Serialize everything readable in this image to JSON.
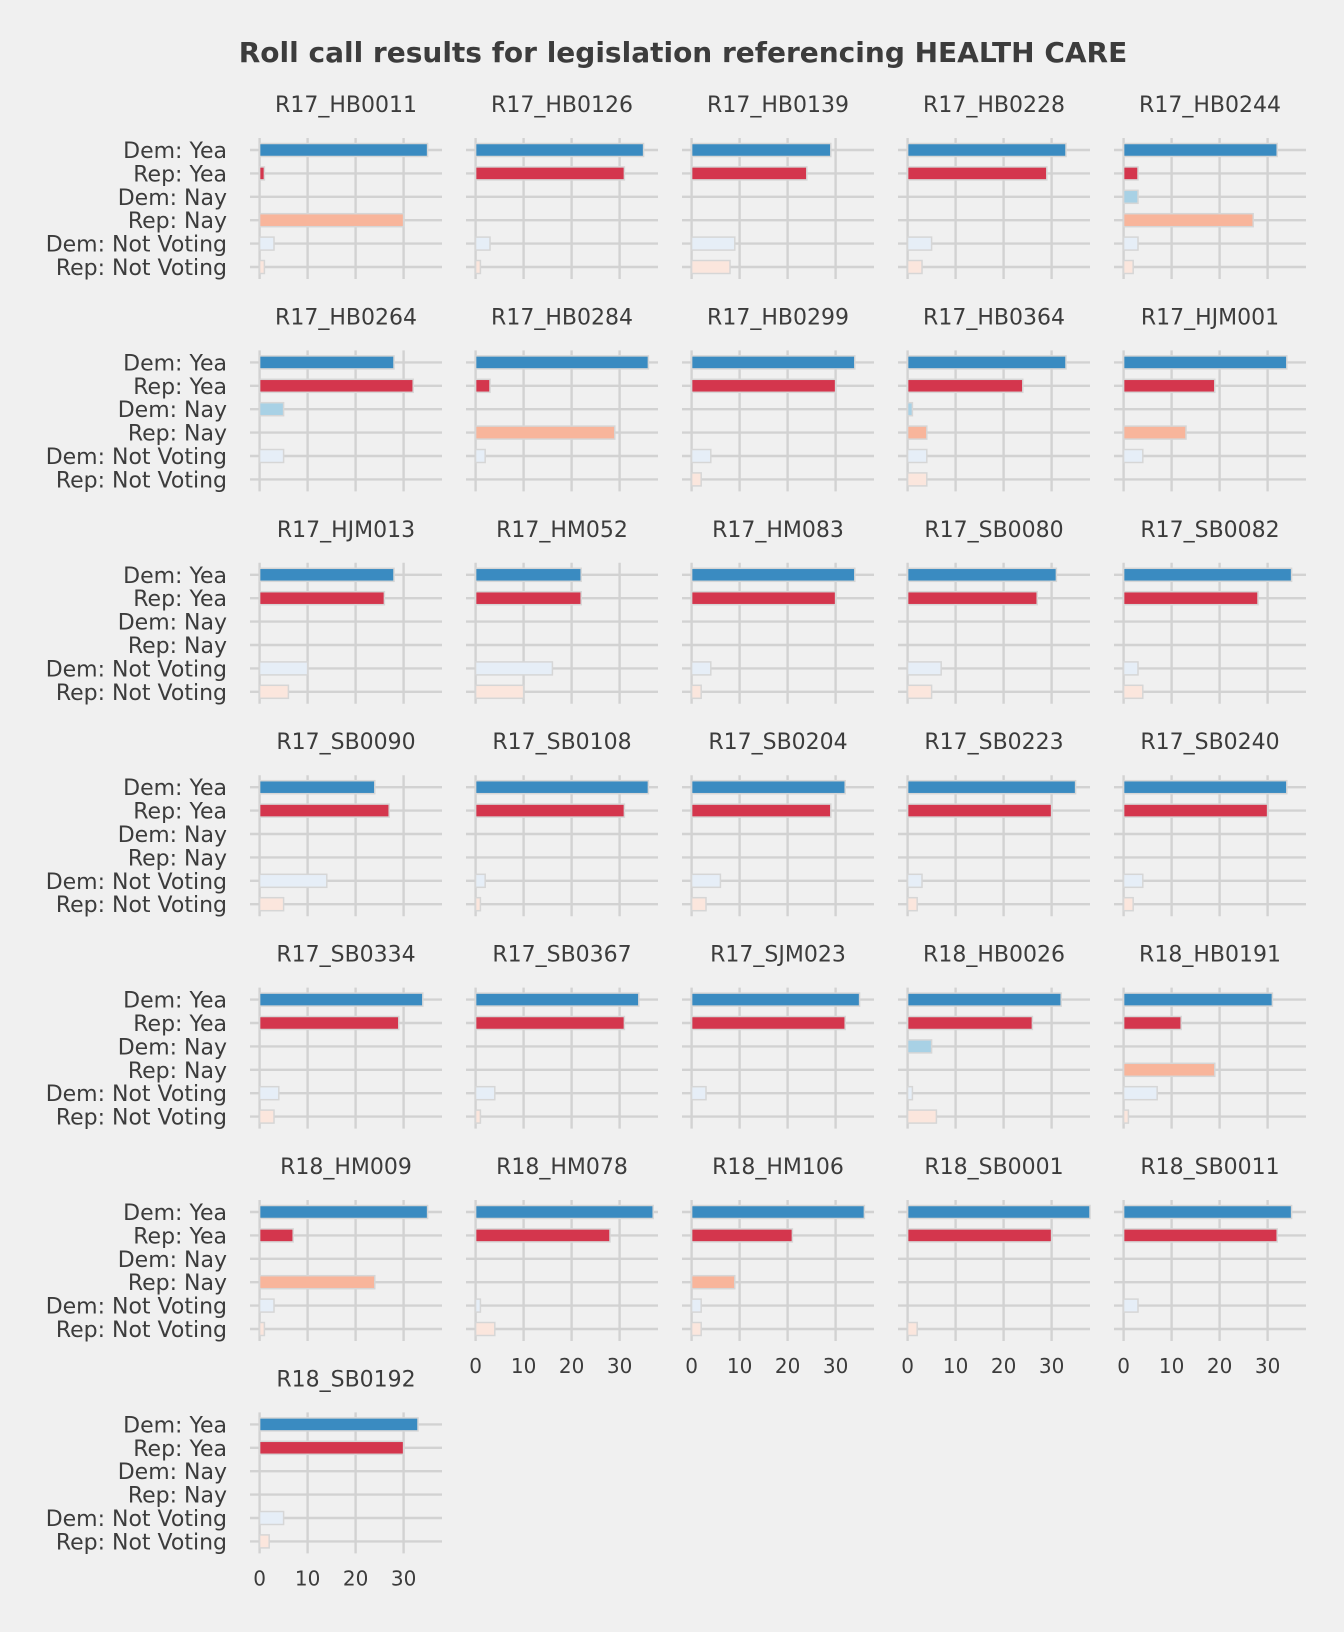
{
  "chart_data": {
    "type": "bar",
    "orientation": "horizontal",
    "layout": "small-multiples",
    "title": "Roll call results for legislation referencing HEALTH CARE",
    "categories": [
      "Dem: Yea",
      "Rep: Yea",
      "Dem: Nay",
      "Rep: Nay",
      "Dem: Not Voting",
      "Rep: Not Voting"
    ],
    "category_colors": [
      "#3a8bc1",
      "#d4364d",
      "#a8d1e5",
      "#f8b59b",
      "#e6eef7",
      "#fbe6dd"
    ],
    "xticks": [
      0,
      10,
      20,
      30
    ],
    "xlim": [
      -2,
      38
    ],
    "grid": true,
    "legend": "none",
    "panels": [
      {
        "title": "R17_HB0011",
        "values": [
          35,
          1,
          0,
          30,
          3,
          1
        ]
      },
      {
        "title": "R17_HB0126",
        "values": [
          35,
          31,
          0,
          0,
          3,
          1
        ]
      },
      {
        "title": "R17_HB0139",
        "values": [
          29,
          24,
          0,
          0,
          9,
          8
        ]
      },
      {
        "title": "R17_HB0228",
        "values": [
          33,
          29,
          0,
          0,
          5,
          3
        ]
      },
      {
        "title": "R17_HB0244",
        "values": [
          32,
          3,
          3,
          27,
          3,
          2
        ]
      },
      {
        "title": "R17_HB0264",
        "values": [
          28,
          32,
          5,
          0,
          5,
          0
        ]
      },
      {
        "title": "R17_HB0284",
        "values": [
          36,
          3,
          0,
          29,
          2,
          0
        ]
      },
      {
        "title": "R17_HB0299",
        "values": [
          34,
          30,
          0,
          0,
          4,
          2
        ]
      },
      {
        "title": "R17_HB0364",
        "values": [
          33,
          24,
          1,
          4,
          4,
          4
        ]
      },
      {
        "title": "R17_HJM001",
        "values": [
          34,
          19,
          0,
          13,
          4,
          0
        ]
      },
      {
        "title": "R17_HJM013",
        "values": [
          28,
          26,
          0,
          0,
          10,
          6
        ]
      },
      {
        "title": "R17_HM052",
        "values": [
          22,
          22,
          0,
          0,
          16,
          10
        ]
      },
      {
        "title": "R17_HM083",
        "values": [
          34,
          30,
          0,
          0,
          4,
          2
        ]
      },
      {
        "title": "R17_SB0080",
        "values": [
          31,
          27,
          0,
          0,
          7,
          5
        ]
      },
      {
        "title": "R17_SB0082",
        "values": [
          35,
          28,
          0,
          0,
          3,
          4
        ]
      },
      {
        "title": "R17_SB0090",
        "values": [
          24,
          27,
          0,
          0,
          14,
          5
        ]
      },
      {
        "title": "R17_SB0108",
        "values": [
          36,
          31,
          0,
          0,
          2,
          1
        ]
      },
      {
        "title": "R17_SB0204",
        "values": [
          32,
          29,
          0,
          0,
          6,
          3
        ]
      },
      {
        "title": "R17_SB0223",
        "values": [
          35,
          30,
          0,
          0,
          3,
          2
        ]
      },
      {
        "title": "R17_SB0240",
        "values": [
          34,
          30,
          0,
          0,
          4,
          2
        ]
      },
      {
        "title": "R17_SB0334",
        "values": [
          34,
          29,
          0,
          0,
          4,
          3
        ]
      },
      {
        "title": "R17_SB0367",
        "values": [
          34,
          31,
          0,
          0,
          4,
          1
        ]
      },
      {
        "title": "R17_SJM023",
        "values": [
          35,
          32,
          0,
          0,
          3,
          0
        ]
      },
      {
        "title": "R18_HB0026",
        "values": [
          32,
          26,
          5,
          0,
          1,
          6
        ]
      },
      {
        "title": "R18_HB0191",
        "values": [
          31,
          12,
          0,
          19,
          7,
          1
        ]
      },
      {
        "title": "R18_HM009",
        "values": [
          35,
          7,
          0,
          24,
          3,
          1
        ]
      },
      {
        "title": "R18_HM078",
        "values": [
          37,
          28,
          0,
          0,
          1,
          4
        ]
      },
      {
        "title": "R18_HM106",
        "values": [
          36,
          21,
          0,
          9,
          2,
          2
        ]
      },
      {
        "title": "R18_SB0001",
        "values": [
          38,
          30,
          0,
          0,
          0,
          2
        ]
      },
      {
        "title": "R18_SB0011",
        "values": [
          35,
          32,
          0,
          0,
          3,
          0
        ]
      },
      {
        "title": "R18_SB0192",
        "values": [
          33,
          30,
          0,
          0,
          5,
          2
        ]
      }
    ],
    "x_axis_shown_on_panels": [
      "R18_HM078",
      "R18_HM106",
      "R18_SB0001",
      "R18_SB0011",
      "R18_SB0192"
    ]
  }
}
